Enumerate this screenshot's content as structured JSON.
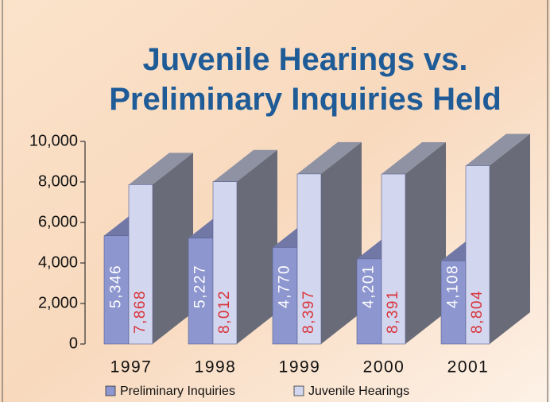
{
  "chart_data": {
    "type": "bar3d",
    "title": "Juvenile Hearings vs. Preliminary Inquiries Held",
    "categories": [
      "1997",
      "1998",
      "1999",
      "2000",
      "2001"
    ],
    "series": [
      {
        "name": "Preliminary Inquiries",
        "color": "#8d96cf",
        "label_color": "#ffffff",
        "values": [
          5346,
          5227,
          4770,
          4201,
          4108
        ],
        "value_labels": [
          "5,346",
          "5,227",
          "4,770",
          "4,201",
          "4,108"
        ]
      },
      {
        "name": "Juvenile Hearings",
        "color": "#d3d6ef",
        "label_color": "#d8343a",
        "values": [
          7868,
          8012,
          8397,
          8391,
          8804
        ],
        "value_labels": [
          "7,868",
          "8,012",
          "8,397",
          "8,391",
          "8,804"
        ]
      }
    ],
    "ylim": [
      0,
      10000
    ],
    "yticks": [
      0,
      {
        "value": 2000,
        "label": "2,000"
      },
      {
        "value": 4000,
        "label": "4,000"
      },
      {
        "value": 6000,
        "label": "6,000"
      },
      {
        "value": 8000,
        "label": "8,000"
      },
      {
        "value": 10000,
        "label": "10,000"
      }
    ],
    "legend": "bottom"
  }
}
